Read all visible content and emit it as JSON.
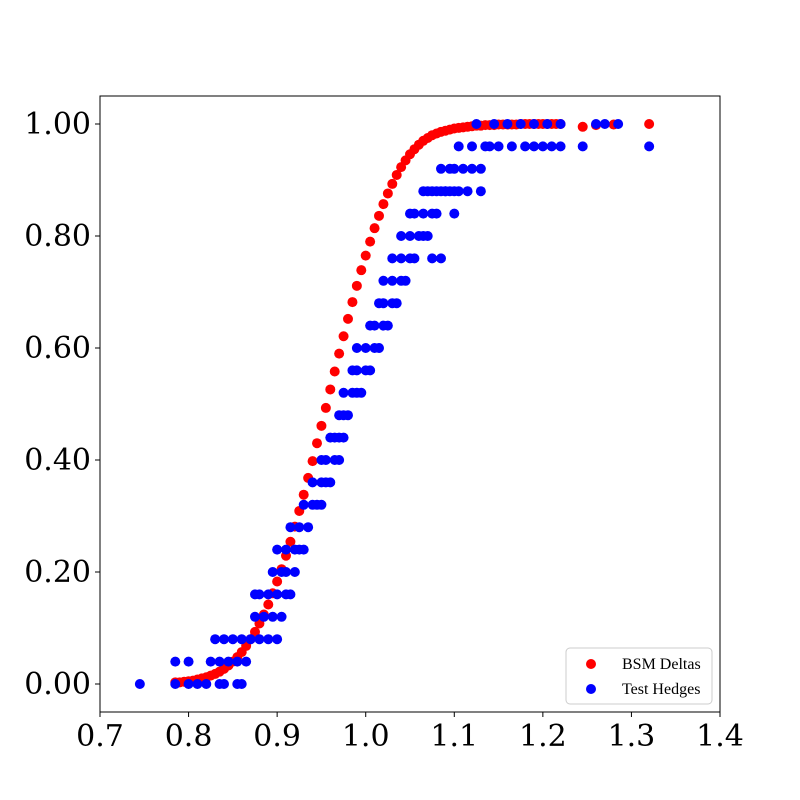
{
  "chart_data": {
    "type": "scatter",
    "title": "",
    "xlabel": "",
    "ylabel": "",
    "xlim": [
      0.7,
      1.4
    ],
    "ylim": [
      -0.05,
      1.05
    ],
    "grid": false,
    "legend_position": "bottom-right",
    "x_ticks": [
      0.7,
      0.8,
      0.9,
      1.0,
      1.1,
      1.2,
      1.3,
      1.4
    ],
    "x_tick_labels": [
      "0.7",
      "0.8",
      "0.9",
      "1.0",
      "1.1",
      "1.2",
      "1.3",
      "1.4"
    ],
    "y_ticks": [
      0.0,
      0.2,
      0.4,
      0.6,
      0.8,
      1.0
    ],
    "y_tick_labels": [
      "0.00",
      "0.20",
      "0.40",
      "0.60",
      "0.80",
      "1.00"
    ],
    "series": [
      {
        "name": "BSM Deltas",
        "color": "#ff0000",
        "x": [
          0.785,
          0.79,
          0.795,
          0.8,
          0.805,
          0.81,
          0.815,
          0.82,
          0.825,
          0.83,
          0.835,
          0.84,
          0.845,
          0.85,
          0.855,
          0.86,
          0.865,
          0.87,
          0.875,
          0.88,
          0.885,
          0.89,
          0.895,
          0.9,
          0.905,
          0.91,
          0.915,
          0.92,
          0.925,
          0.93,
          0.935,
          0.94,
          0.945,
          0.95,
          0.955,
          0.96,
          0.965,
          0.97,
          0.975,
          0.98,
          0.985,
          0.99,
          0.995,
          1.0,
          1.005,
          1.01,
          1.015,
          1.02,
          1.025,
          1.03,
          1.035,
          1.04,
          1.045,
          1.05,
          1.055,
          1.06,
          1.065,
          1.07,
          1.075,
          1.08,
          1.085,
          1.09,
          1.095,
          1.1,
          1.105,
          1.11,
          1.115,
          1.12,
          1.125,
          1.13,
          1.135,
          1.14,
          1.145,
          1.15,
          1.155,
          1.16,
          1.165,
          1.17,
          1.175,
          1.18,
          1.185,
          1.19,
          1.195,
          1.2,
          1.205,
          1.21,
          1.215,
          1.22,
          1.245,
          1.26,
          1.28,
          1.32
        ],
        "y": [
          0.003,
          0.003,
          0.004,
          0.005,
          0.006,
          0.008,
          0.01,
          0.012,
          0.015,
          0.018,
          0.022,
          0.027,
          0.033,
          0.04,
          0.048,
          0.057,
          0.068,
          0.08,
          0.093,
          0.108,
          0.124,
          0.142,
          0.162,
          0.183,
          0.205,
          0.229,
          0.254,
          0.281,
          0.309,
          0.338,
          0.368,
          0.398,
          0.43,
          0.461,
          0.493,
          0.526,
          0.558,
          0.59,
          0.621,
          0.652,
          0.682,
          0.711,
          0.739,
          0.765,
          0.79,
          0.814,
          0.836,
          0.857,
          0.876,
          0.893,
          0.909,
          0.923,
          0.935,
          0.946,
          0.955,
          0.963,
          0.97,
          0.975,
          0.98,
          0.983,
          0.986,
          0.988,
          0.99,
          0.992,
          0.993,
          0.994,
          0.995,
          0.996,
          0.997,
          0.997,
          0.998,
          0.998,
          0.998,
          0.999,
          0.999,
          0.999,
          0.999,
          0.999,
          1.0,
          1.0,
          1.0,
          1.0,
          1.0,
          1.0,
          1.0,
          1.0,
          1.0,
          1.0,
          0.995,
          0.998,
          0.999,
          1.0
        ]
      },
      {
        "name": "Test Hedges",
        "color": "#0000ff",
        "x": [
          0.745,
          0.785,
          0.8,
          0.81,
          0.82,
          0.835,
          0.84,
          0.855,
          0.86,
          0.785,
          0.8,
          0.825,
          0.835,
          0.845,
          0.855,
          0.865,
          0.83,
          0.84,
          0.85,
          0.86,
          0.87,
          0.88,
          0.89,
          0.9,
          0.875,
          0.885,
          0.895,
          0.905,
          0.875,
          0.88,
          0.89,
          0.9,
          0.91,
          0.915,
          0.895,
          0.905,
          0.91,
          0.92,
          0.9,
          0.91,
          0.92,
          0.925,
          0.93,
          0.915,
          0.925,
          0.935,
          0.93,
          0.94,
          0.945,
          0.95,
          0.94,
          0.95,
          0.955,
          0.96,
          0.95,
          0.955,
          0.965,
          0.97,
          0.96,
          0.965,
          0.97,
          0.975,
          0.97,
          0.975,
          0.98,
          0.975,
          0.985,
          0.99,
          0.995,
          0.985,
          0.99,
          1.0,
          1.005,
          0.99,
          1.0,
          1.01,
          1.015,
          1.005,
          1.01,
          1.02,
          1.025,
          1.015,
          1.02,
          1.03,
          1.035,
          1.02,
          1.03,
          1.04,
          1.045,
          1.03,
          1.04,
          1.05,
          1.055,
          1.04,
          1.05,
          1.06,
          1.065,
          1.07,
          1.075,
          1.085,
          1.05,
          1.055,
          1.065,
          1.075,
          1.08,
          1.065,
          1.075,
          1.085,
          1.09,
          1.095,
          1.1,
          1.07,
          1.08,
          1.09,
          1.1,
          1.105,
          1.115,
          1.13,
          1.085,
          1.095,
          1.1,
          1.11,
          1.12,
          1.13,
          1.14,
          1.105,
          1.12,
          1.135,
          1.15,
          1.165,
          1.18,
          1.19,
          1.2,
          1.21,
          1.22,
          1.245,
          1.32,
          1.125,
          1.145,
          1.16,
          1.175,
          1.19,
          1.205,
          1.22,
          1.26,
          1.27,
          1.285
        ],
        "y": [
          0.0,
          0.0,
          0.0,
          0.0,
          0.0,
          0.0,
          0.0,
          0.0,
          0.0,
          0.04,
          0.04,
          0.04,
          0.04,
          0.04,
          0.04,
          0.04,
          0.08,
          0.08,
          0.08,
          0.08,
          0.08,
          0.08,
          0.08,
          0.08,
          0.12,
          0.12,
          0.12,
          0.12,
          0.16,
          0.16,
          0.16,
          0.16,
          0.16,
          0.16,
          0.2,
          0.2,
          0.2,
          0.2,
          0.24,
          0.24,
          0.24,
          0.24,
          0.24,
          0.28,
          0.28,
          0.28,
          0.32,
          0.32,
          0.32,
          0.32,
          0.36,
          0.36,
          0.36,
          0.36,
          0.4,
          0.4,
          0.4,
          0.4,
          0.44,
          0.44,
          0.44,
          0.44,
          0.48,
          0.48,
          0.48,
          0.52,
          0.52,
          0.52,
          0.52,
          0.56,
          0.56,
          0.56,
          0.56,
          0.6,
          0.6,
          0.6,
          0.6,
          0.64,
          0.64,
          0.64,
          0.64,
          0.68,
          0.68,
          0.68,
          0.68,
          0.72,
          0.72,
          0.72,
          0.72,
          0.76,
          0.76,
          0.76,
          0.76,
          0.8,
          0.8,
          0.8,
          0.8,
          0.8,
          0.76,
          0.76,
          0.84,
          0.84,
          0.84,
          0.84,
          0.84,
          0.88,
          0.88,
          0.88,
          0.88,
          0.88,
          0.88,
          0.88,
          0.88,
          0.88,
          0.84,
          0.88,
          0.88,
          0.88,
          0.92,
          0.92,
          0.92,
          0.92,
          0.92,
          0.92,
          0.96,
          0.96,
          0.96,
          0.96,
          0.96,
          0.96,
          0.96,
          0.96,
          0.96,
          0.96,
          0.96,
          0.96,
          0.96,
          1.0,
          1.0,
          1.0,
          1.0,
          1.0,
          1.0,
          1.0,
          1.0,
          1.0,
          1.0
        ]
      }
    ]
  }
}
